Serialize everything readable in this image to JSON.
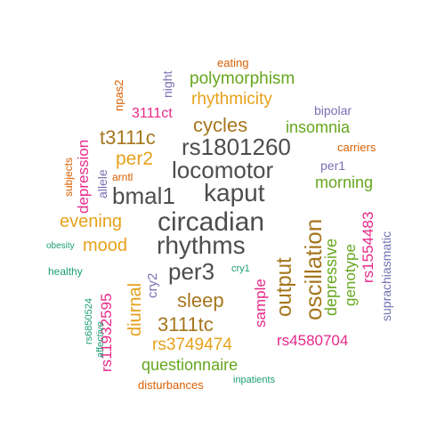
{
  "palette": {
    "dark_gray": "#4d4d4d",
    "gold": "#e6a11a",
    "olive_brown": "#a6761d",
    "green": "#66a61e",
    "magenta": "#e7298a",
    "purple": "#7570b3",
    "orange": "#d95f02",
    "teal": "#1b9e77"
  },
  "words": [
    {
      "id": "circadian",
      "text": "circadian",
      "color": "dark_gray"
    },
    {
      "id": "rhythms",
      "text": "rhythms",
      "color": "dark_gray"
    },
    {
      "id": "locomotor",
      "text": "locomotor",
      "color": "dark_gray"
    },
    {
      "id": "rs1801260",
      "text": "rs1801260",
      "color": "dark_gray"
    },
    {
      "id": "kaput",
      "text": "kaput",
      "color": "dark_gray"
    },
    {
      "id": "bmal1",
      "text": "bmal1",
      "color": "dark_gray"
    },
    {
      "id": "per3",
      "text": "per3",
      "color": "dark_gray"
    },
    {
      "id": "oscillation",
      "text": "oscillation",
      "color": "olive_brown"
    },
    {
      "id": "output",
      "text": "output",
      "color": "olive_brown"
    },
    {
      "id": "sleep",
      "text": "sleep",
      "color": "olive_brown"
    },
    {
      "id": "3111tc",
      "text": "3111tc",
      "color": "olive_brown"
    },
    {
      "id": "t3111c",
      "text": "t3111c",
      "color": "olive_brown"
    },
    {
      "id": "cycles",
      "text": "cycles",
      "color": "olive_brown"
    },
    {
      "id": "per2",
      "text": "per2",
      "color": "gold"
    },
    {
      "id": "evening",
      "text": "evening",
      "color": "gold"
    },
    {
      "id": "mood",
      "text": "mood",
      "color": "gold"
    },
    {
      "id": "diurnal",
      "text": "diurnal",
      "color": "gold"
    },
    {
      "id": "rhythmicity",
      "text": "rhythmicity",
      "color": "gold"
    },
    {
      "id": "rs3749474",
      "text": "rs3749474",
      "color": "gold"
    },
    {
      "id": "polymorphism",
      "text": "polymorphism",
      "color": "green"
    },
    {
      "id": "insomnia",
      "text": "insomnia",
      "color": "green"
    },
    {
      "id": "morning",
      "text": "morning",
      "color": "green"
    },
    {
      "id": "questionnaire",
      "text": "questionnaire",
      "color": "green"
    },
    {
      "id": "depressive",
      "text": "depressive",
      "color": "green"
    },
    {
      "id": "genotype",
      "text": "genotype",
      "color": "green"
    },
    {
      "id": "rs1554483",
      "text": "rs1554483",
      "color": "magenta"
    },
    {
      "id": "rs4580704",
      "text": "rs4580704",
      "color": "magenta"
    },
    {
      "id": "rs11932595",
      "text": "rs11932595",
      "color": "magenta"
    },
    {
      "id": "sample",
      "text": "sample",
      "color": "magenta"
    },
    {
      "id": "depression",
      "text": "depression",
      "color": "magenta"
    },
    {
      "id": "3111ct",
      "text": "3111ct",
      "color": "magenta"
    },
    {
      "id": "bipolar",
      "text": "bipolar",
      "color": "purple"
    },
    {
      "id": "per1",
      "text": "per1",
      "color": "purple"
    },
    {
      "id": "night",
      "text": "night",
      "color": "purple"
    },
    {
      "id": "allele",
      "text": "allele",
      "color": "purple"
    },
    {
      "id": "cry2",
      "text": "cry2",
      "color": "purple"
    },
    {
      "id": "suprachiasmatic",
      "text": "suprachiasmatic",
      "color": "purple"
    },
    {
      "id": "eating",
      "text": "eating",
      "color": "orange"
    },
    {
      "id": "carriers",
      "text": "carriers",
      "color": "orange"
    },
    {
      "id": "npas2",
      "text": "npas2",
      "color": "orange"
    },
    {
      "id": "arntl",
      "text": "arntl",
      "color": "orange"
    },
    {
      "id": "subjects",
      "text": "subjects",
      "color": "orange"
    },
    {
      "id": "disturbances",
      "text": "disturbances",
      "color": "orange"
    },
    {
      "id": "obesity",
      "text": "obesity",
      "color": "teal"
    },
    {
      "id": "healthy",
      "text": "healthy",
      "color": "teal"
    },
    {
      "id": "cry1",
      "text": "cry1",
      "color": "teal"
    },
    {
      "id": "rs6850524",
      "text": "rs6850524",
      "color": "teal"
    },
    {
      "id": "affective",
      "text": "affective",
      "color": "teal"
    },
    {
      "id": "inpatients",
      "text": "inpatients",
      "color": "teal"
    }
  ]
}
